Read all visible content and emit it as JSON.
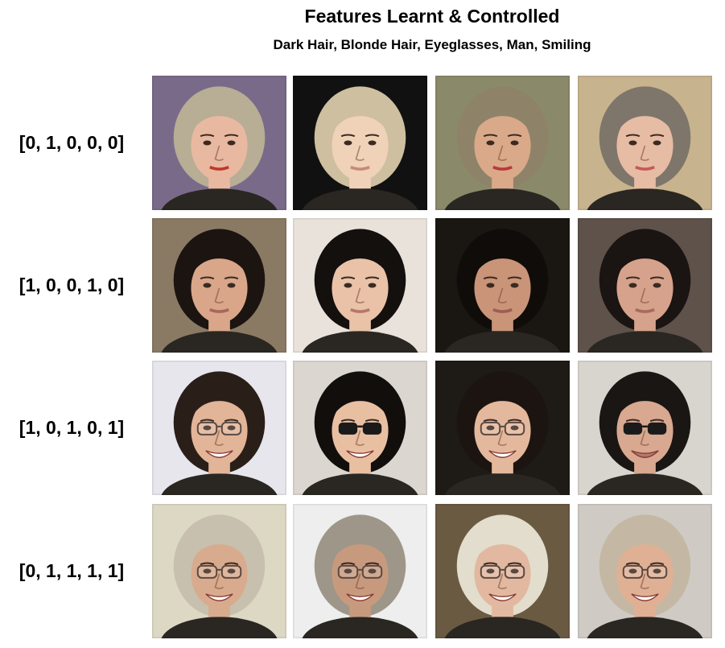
{
  "header": {
    "title": "Features Learnt & Controlled",
    "subtitle": "Dark Hair, Blonde Hair, Eyeglasses, Man, Smiling"
  },
  "rows": [
    {
      "label": "[0, 1, 0, 0, 0]",
      "images": [
        {
          "bg": "#7a6a8a",
          "hair": "#b8ad95",
          "skin": "#e8b9a0",
          "mouth": "#c0392b",
          "glasses": "none",
          "smile": false
        },
        {
          "bg": "#111111",
          "hair": "#cdbfa0",
          "skin": "#f0d2b8",
          "mouth": "#c9897a",
          "glasses": "none",
          "smile": false
        },
        {
          "bg": "#8a8a6a",
          "hair": "#8e8368",
          "skin": "#d9a98a",
          "mouth": "#b83a3a",
          "glasses": "none",
          "smile": false
        },
        {
          "bg": "#c7b48e",
          "hair": "#7e766a",
          "skin": "#e7bca4",
          "mouth": "#c45a5a",
          "glasses": "none",
          "smile": false
        }
      ]
    },
    {
      "label": "[1, 0, 0, 1, 0]",
      "images": [
        {
          "bg": "#8a7a64",
          "hair": "#1c1410",
          "skin": "#d9a68a",
          "mouth": "#a8665a",
          "glasses": "none",
          "smile": false
        },
        {
          "bg": "#e8e2da",
          "hair": "#14100e",
          "skin": "#e9c2a8",
          "mouth": "#b8776a",
          "glasses": "none",
          "smile": false
        },
        {
          "bg": "#1a1612",
          "hair": "#0f0c0a",
          "skin": "#c99478",
          "mouth": "#9e5e52",
          "glasses": "none",
          "smile": false
        },
        {
          "bg": "#5e524a",
          "hair": "#1a1412",
          "skin": "#d6a28c",
          "mouth": "#a86a5e",
          "glasses": "none",
          "smile": false
        }
      ]
    },
    {
      "label": "[1, 0, 1, 0, 1]",
      "images": [
        {
          "bg": "#e6e6ec",
          "hair": "#2a1e18",
          "skin": "#e2b498",
          "mouth": "#ffffff",
          "glasses": "clear",
          "smile": true
        },
        {
          "bg": "#dcd6d0",
          "hair": "#120e0c",
          "skin": "#e9bfa2",
          "mouth": "#ffffff",
          "glasses": "sun",
          "smile": true
        },
        {
          "bg": "#1e1a16",
          "hair": "#1c1410",
          "skin": "#e4b89c",
          "mouth": "#ffffff",
          "glasses": "clear",
          "smile": true
        },
        {
          "bg": "#d8d4ce",
          "hair": "#1a1614",
          "skin": "#d8a890",
          "mouth": "#b07a6e",
          "glasses": "sun",
          "smile": true
        }
      ]
    },
    {
      "label": "[0, 1, 1, 1, 1]",
      "images": [
        {
          "bg": "#dcd8c4",
          "hair": "#c7c0ae",
          "skin": "#d9ab8e",
          "mouth": "#ffffff",
          "glasses": "clear",
          "smile": true
        },
        {
          "bg": "#eeeeee",
          "hair": "#9e9688",
          "skin": "#c79a7e",
          "mouth": "#ffffff",
          "glasses": "clear",
          "smile": true
        },
        {
          "bg": "#6a5a42",
          "hair": "#e2ddcc",
          "skin": "#e2b8a0",
          "mouth": "#ffffff",
          "glasses": "clear",
          "smile": true
        },
        {
          "bg": "#cfcbc4",
          "hair": "#c4b8a4",
          "skin": "#e0b094",
          "mouth": "#ffffff",
          "glasses": "clear",
          "smile": true
        }
      ]
    }
  ]
}
